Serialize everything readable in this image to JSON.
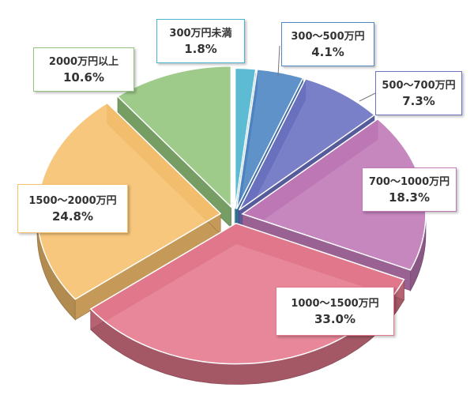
{
  "chart_data": {
    "type": "pie",
    "title": "",
    "categories": [
      "300万円未満",
      "300～500万円",
      "500～700万円",
      "700～1000万円",
      "1000～1500万円",
      "1500～2000万円",
      "2000万円以上"
    ],
    "values": [
      1.8,
      4.1,
      7.3,
      18.3,
      33.0,
      24.8,
      10.6
    ],
    "value_labels": [
      "1.8%",
      "4.1%",
      "7.3%",
      "18.3%",
      "33.0%",
      "24.8%",
      "10.6%"
    ],
    "colors": [
      "#4bb5cf",
      "#4f86c4",
      "#6b72c2",
      "#c07ab8",
      "#e47a8e",
      "#f6c16f",
      "#93c47d"
    ],
    "style": "3d-exploded",
    "legend": "none"
  }
}
